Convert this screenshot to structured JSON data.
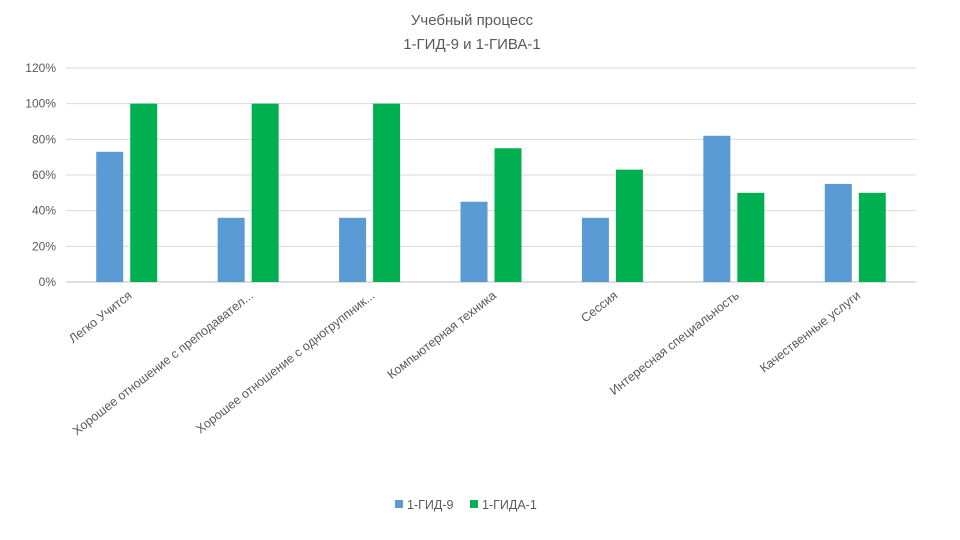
{
  "chart_data": {
    "type": "bar",
    "title_lines": [
      "Учебный процесс",
      "1-ГИД-9 и 1-ГИВА-1"
    ],
    "categories": [
      "Легко Учится",
      "Хорошее отношение с преподавател...",
      "Хорошее отношение с одногруппник...",
      "Компьютерная техника",
      "Сессия",
      "Интересная специальность",
      "Качественные услуги"
    ],
    "series": [
      {
        "name": "1-ГИД-9",
        "color": "#5b9bd5",
        "values": [
          73,
          36,
          36,
          45,
          36,
          82,
          55
        ]
      },
      {
        "name": "1-ГИДА-1",
        "color": "#00b050",
        "values": [
          100,
          100,
          100,
          75,
          63,
          50,
          50
        ]
      }
    ],
    "y_ticks": [
      0,
      20,
      40,
      60,
      80,
      100,
      120
    ],
    "y_tick_labels": [
      "0%",
      "20%",
      "40%",
      "60%",
      "80%",
      "100%",
      "120%"
    ],
    "ylim": [
      0,
      120
    ],
    "grid": true,
    "legend_position": "bottom",
    "xlabel": "",
    "ylabel": ""
  }
}
